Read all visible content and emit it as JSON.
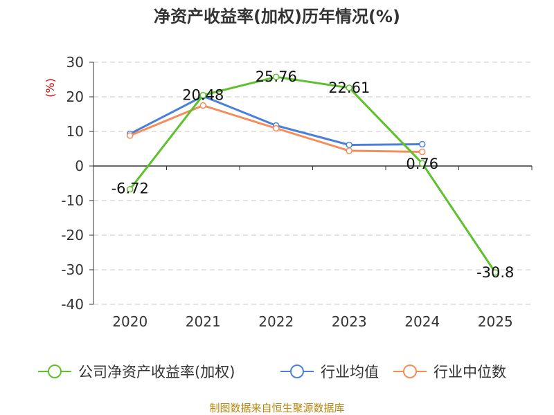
{
  "chart_data": {
    "type": "line",
    "title": "净资产收益率(加权)历年情况(%)",
    "ylabel": "(%)",
    "xlabel": "",
    "categories": [
      "2020",
      "2021",
      "2022",
      "2023",
      "2024",
      "2025"
    ],
    "ylim": [
      -40,
      30
    ],
    "yticks": [
      30,
      20,
      10,
      0,
      -10,
      -20,
      -30,
      -40
    ],
    "grid": true,
    "legend_position": "bottom",
    "series": [
      {
        "name": "公司净资产收益率(加权)",
        "color": "#5cc12b",
        "values": [
          -6.72,
          20.48,
          25.76,
          22.61,
          0.76,
          -30.8
        ],
        "labels": [
          "-6.72",
          "20.48",
          "25.76",
          "22.61",
          "0.76",
          "-30.8"
        ]
      },
      {
        "name": "行业均值",
        "color": "#4a7fdc",
        "values": [
          9.3,
          20.2,
          11.7,
          6.1,
          6.3,
          null
        ]
      },
      {
        "name": "行业中位数",
        "color": "#f58c5a",
        "values": [
          8.8,
          17.5,
          10.9,
          4.4,
          4.1,
          null
        ]
      }
    ],
    "source": "制图数据来自恒生聚源数据库"
  }
}
